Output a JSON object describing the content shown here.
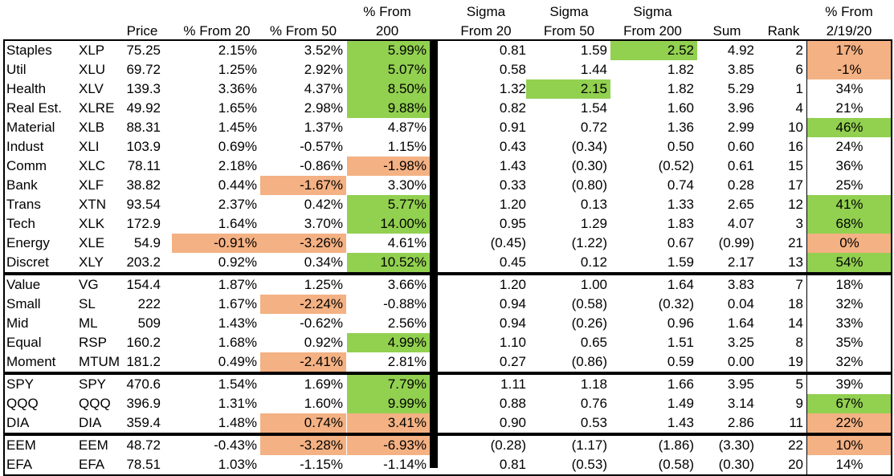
{
  "headers": {
    "price": "Price",
    "from20": "% From 20",
    "from50": "% From 50",
    "from200_l1": "% From",
    "from200_l2": "200",
    "sig20_l1": "Sigma",
    "sig20_l2": "From 20",
    "sig50_l1": "Sigma",
    "sig50_l2": "From 50",
    "sig200_l1": "Sigma",
    "sig200_l2": "From 200",
    "sum": "Sum",
    "rank": "Rank",
    "feb_l1": "% From",
    "feb_l2": "2/19/20"
  },
  "rows": [
    {
      "name": "Staples",
      "ticker": "XLP",
      "price": "75.25",
      "p20": "2.15%",
      "p50": "3.52%",
      "p200": "5.99%",
      "s20": "0.81",
      "s50": "1.59",
      "s200": "2.52",
      "sum": "4.92",
      "rank": "2",
      "feb": "17%"
    },
    {
      "name": "Util",
      "ticker": "XLU",
      "price": "69.72",
      "p20": "1.25%",
      "p50": "2.92%",
      "p200": "5.07%",
      "s20": "0.58",
      "s50": "1.44",
      "s200": "1.82",
      "sum": "3.85",
      "rank": "6",
      "feb": "-1%"
    },
    {
      "name": "Health",
      "ticker": "XLV",
      "price": "139.3",
      "p20": "3.36%",
      "p50": "4.37%",
      "p200": "8.50%",
      "s20": "1.32",
      "s50": "2.15",
      "s200": "1.82",
      "sum": "5.29",
      "rank": "1",
      "feb": "34%"
    },
    {
      "name": "Real Est.",
      "ticker": "XLRE",
      "price": "49.92",
      "p20": "1.65%",
      "p50": "2.98%",
      "p200": "9.88%",
      "s20": "0.82",
      "s50": "1.54",
      "s200": "1.60",
      "sum": "3.96",
      "rank": "4",
      "feb": "21%"
    },
    {
      "name": "Material",
      "ticker": "XLB",
      "price": "88.31",
      "p20": "1.45%",
      "p50": "1.37%",
      "p200": "4.87%",
      "s20": "0.91",
      "s50": "0.72",
      "s200": "1.36",
      "sum": "2.99",
      "rank": "10",
      "feb": "46%"
    },
    {
      "name": "Indust",
      "ticker": "XLI",
      "price": "103.9",
      "p20": "0.69%",
      "p50": "-0.57%",
      "p200": "1.15%",
      "s20": "0.43",
      "s50": "(0.34)",
      "s200": "0.50",
      "sum": "0.60",
      "rank": "16",
      "feb": "24%"
    },
    {
      "name": "Comm",
      "ticker": "XLC",
      "price": "78.11",
      "p20": "2.18%",
      "p50": "-0.86%",
      "p200": "-1.98%",
      "s20": "1.43",
      "s50": "(0.30)",
      "s200": "(0.52)",
      "sum": "0.61",
      "rank": "15",
      "feb": "36%"
    },
    {
      "name": "Bank",
      "ticker": "XLF",
      "price": "38.82",
      "p20": "0.44%",
      "p50": "-1.67%",
      "p200": "3.30%",
      "s20": "0.33",
      "s50": "(0.80)",
      "s200": "0.74",
      "sum": "0.28",
      "rank": "17",
      "feb": "25%"
    },
    {
      "name": "Trans",
      "ticker": "XTN",
      "price": "93.54",
      "p20": "2.37%",
      "p50": "0.42%",
      "p200": "5.77%",
      "s20": "1.20",
      "s50": "0.13",
      "s200": "1.33",
      "sum": "2.65",
      "rank": "12",
      "feb": "41%"
    },
    {
      "name": "Tech",
      "ticker": "XLK",
      "price": "172.9",
      "p20": "1.64%",
      "p50": "3.70%",
      "p200": "14.00%",
      "s20": "0.95",
      "s50": "1.29",
      "s200": "1.83",
      "sum": "4.07",
      "rank": "3",
      "feb": "68%"
    },
    {
      "name": "Energy",
      "ticker": "XLE",
      "price": "54.9",
      "p20": "-0.91%",
      "p50": "-3.26%",
      "p200": "4.61%",
      "s20": "(0.45)",
      "s50": "(1.22)",
      "s200": "0.67",
      "sum": "(0.99)",
      "rank": "21",
      "feb": "0%"
    },
    {
      "name": "Discret",
      "ticker": "XLY",
      "price": "203.2",
      "p20": "0.92%",
      "p50": "0.34%",
      "p200": "10.52%",
      "s20": "0.45",
      "s50": "0.12",
      "s200": "1.59",
      "sum": "2.17",
      "rank": "13",
      "feb": "54%"
    },
    {
      "name": "Value",
      "ticker": "VG",
      "price": "154.4",
      "p20": "1.87%",
      "p50": "1.25%",
      "p200": "3.66%",
      "s20": "1.20",
      "s50": "1.00",
      "s200": "1.64",
      "sum": "3.83",
      "rank": "7",
      "feb": "18%"
    },
    {
      "name": "Small",
      "ticker": "SL",
      "price": "222",
      "p20": "1.67%",
      "p50": "-2.24%",
      "p200": "-0.88%",
      "s20": "0.94",
      "s50": "(0.58)",
      "s200": "(0.32)",
      "sum": "0.04",
      "rank": "18",
      "feb": "32%"
    },
    {
      "name": "Mid",
      "ticker": "ML",
      "price": "509",
      "p20": "1.43%",
      "p50": "-0.62%",
      "p200": "2.56%",
      "s20": "0.94",
      "s50": "(0.26)",
      "s200": "0.96",
      "sum": "1.64",
      "rank": "14",
      "feb": "33%"
    },
    {
      "name": "Equal",
      "ticker": "RSP",
      "price": "160.2",
      "p20": "1.68%",
      "p50": "0.92%",
      "p200": "4.99%",
      "s20": "1.10",
      "s50": "0.65",
      "s200": "1.51",
      "sum": "3.25",
      "rank": "8",
      "feb": "35%"
    },
    {
      "name": "Moment",
      "ticker": "MTUM",
      "price": "181.2",
      "p20": "0.49%",
      "p50": "-2.41%",
      "p200": "2.81%",
      "s20": "0.27",
      "s50": "(0.86)",
      "s200": "0.59",
      "sum": "0.00",
      "rank": "19",
      "feb": "32%"
    },
    {
      "name": "SPY",
      "ticker": "SPY",
      "price": "470.6",
      "p20": "1.54%",
      "p50": "1.69%",
      "p200": "7.79%",
      "s20": "1.11",
      "s50": "1.18",
      "s200": "1.66",
      "sum": "3.95",
      "rank": "5",
      "feb": "39%"
    },
    {
      "name": "QQQ",
      "ticker": "QQQ",
      "price": "396.9",
      "p20": "1.31%",
      "p50": "1.60%",
      "p200": "9.99%",
      "s20": "0.88",
      "s50": "0.76",
      "s200": "1.49",
      "sum": "3.14",
      "rank": "9",
      "feb": "67%"
    },
    {
      "name": "DIA",
      "ticker": "DIA",
      "price": "359.4",
      "p20": "1.48%",
      "p50": "0.74%",
      "p200": "3.41%",
      "s20": "0.90",
      "s50": "0.53",
      "s200": "1.43",
      "sum": "2.86",
      "rank": "11",
      "feb": "22%"
    },
    {
      "name": "EEM",
      "ticker": "EEM",
      "price": "48.72",
      "p20": "-0.43%",
      "p50": "-3.28%",
      "p200": "-6.93%",
      "s20": "(0.28)",
      "s50": "(1.17)",
      "s200": "(1.86)",
      "sum": "(3.30)",
      "rank": "22",
      "feb": "10%"
    },
    {
      "name": "EFA",
      "ticker": "EFA",
      "price": "78.51",
      "p20": "1.03%",
      "p50": "-1.15%",
      "p200": "-1.14%",
      "s20": "0.81",
      "s50": "(0.53)",
      "s200": "(0.58)",
      "sum": "(0.30)",
      "rank": "20",
      "feb": "14%"
    }
  ],
  "highlights": {
    "green": [
      "0.p200",
      "1.p200",
      "2.p200",
      "3.p200",
      "8.p200",
      "9.p200",
      "11.p200",
      "15.p200",
      "17.p200",
      "18.p200",
      "0.s200",
      "2.s50",
      "4.feb",
      "8.feb",
      "9.feb",
      "11.feb",
      "18.feb"
    ],
    "orange": [
      "6.p200",
      "7.p50",
      "10.p20",
      "10.p50",
      "13.p50",
      "16.p50",
      "19.p50",
      "19.p200",
      "20.p50",
      "20.p200",
      "0.feb",
      "1.feb",
      "10.feb",
      "19.feb",
      "20.feb"
    ]
  },
  "colors": {
    "green": "#92d050",
    "orange": "#f4b183",
    "border": "#000000"
  },
  "group_sizes": [
    12,
    5,
    3,
    2
  ]
}
